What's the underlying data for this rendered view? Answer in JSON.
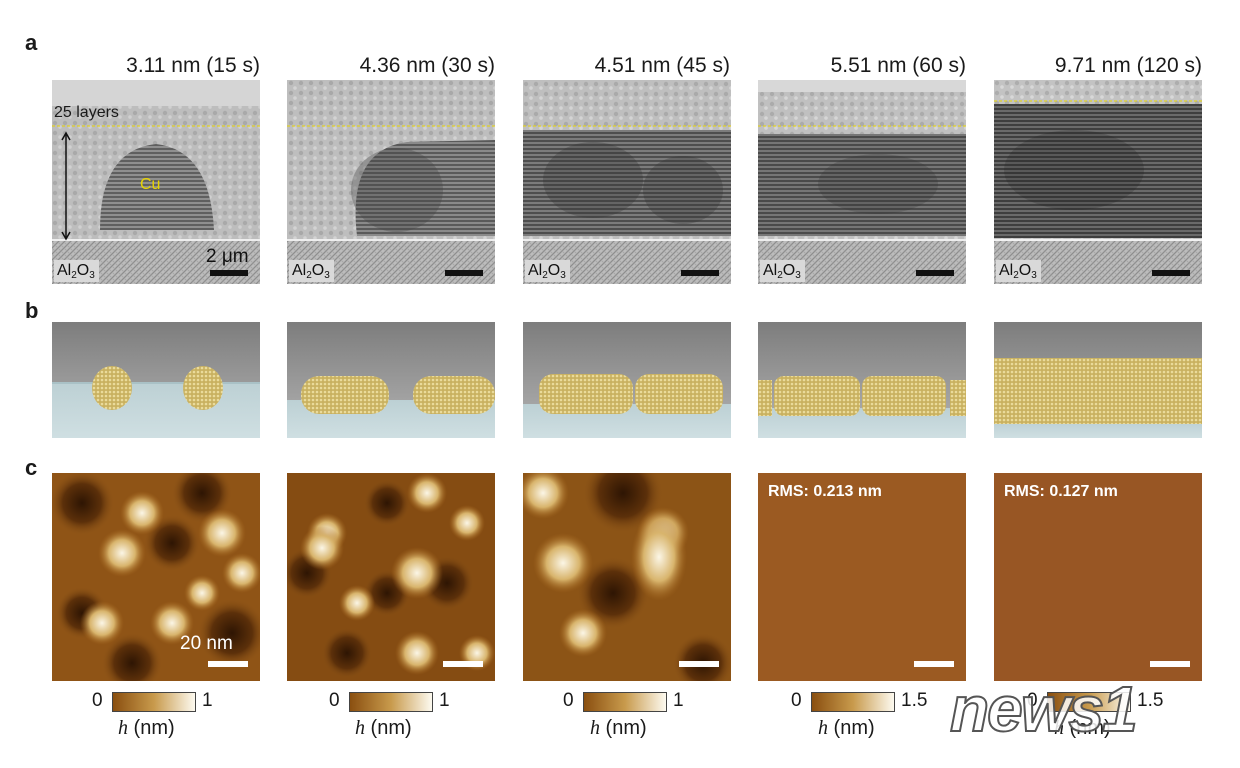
{
  "panels": {
    "a": "a",
    "b": "b",
    "c": "c"
  },
  "columns": [
    {
      "title": "3.11 nm (15 s)",
      "substrate": "Al",
      "substrate_sub": "2",
      "substrate_tail": "O",
      "substrate_sub2": "3",
      "afm_colorbar_min": "0",
      "afm_colorbar_max": "1",
      "afm_unit_var": "h",
      "afm_unit": " (nm)"
    },
    {
      "title": "4.36 nm (30 s)",
      "substrate": "Al",
      "substrate_sub": "2",
      "substrate_tail": "O",
      "substrate_sub2": "3",
      "afm_colorbar_min": "0",
      "afm_colorbar_max": "1",
      "afm_unit_var": "h",
      "afm_unit": " (nm)"
    },
    {
      "title": "4.51 nm (45 s)",
      "substrate": "Al",
      "substrate_sub": "2",
      "substrate_tail": "O",
      "substrate_sub2": "3",
      "afm_colorbar_min": "0",
      "afm_colorbar_max": "1",
      "afm_unit_var": "h",
      "afm_unit": " (nm)"
    },
    {
      "title": "5.51 nm (60 s)",
      "substrate": "Al",
      "substrate_sub": "2",
      "substrate_tail": "O",
      "substrate_sub2": "3",
      "afm_colorbar_min": "0",
      "afm_colorbar_max": "1.5",
      "afm_unit_var": "h",
      "afm_unit": " (nm)",
      "rms": "RMS: 0.213 nm"
    },
    {
      "title": "9.71 nm (120 s)",
      "substrate": "Al",
      "substrate_sub": "2",
      "substrate_tail": "O",
      "substrate_sub2": "3",
      "afm_colorbar_min": "0",
      "afm_colorbar_max": "1.5",
      "afm_unit_var": "h",
      "afm_unit": " (nm)",
      "rms": "RMS: 0.127 nm"
    }
  ],
  "annotations": {
    "layers": "25 layers",
    "cu": "Cu",
    "tem_scale": "2 μm",
    "afm_scale": "20 nm"
  },
  "watermark": "news1",
  "colors": {
    "afm_dark": "#3a1c04",
    "afm_mid": "#a8691e",
    "afm_light": "#fbf6e6",
    "flat_afm_60": "#9b5a22",
    "flat_afm_120": "#985624",
    "guide_line": "#e8d400",
    "atoms": "#d3bb6c"
  }
}
